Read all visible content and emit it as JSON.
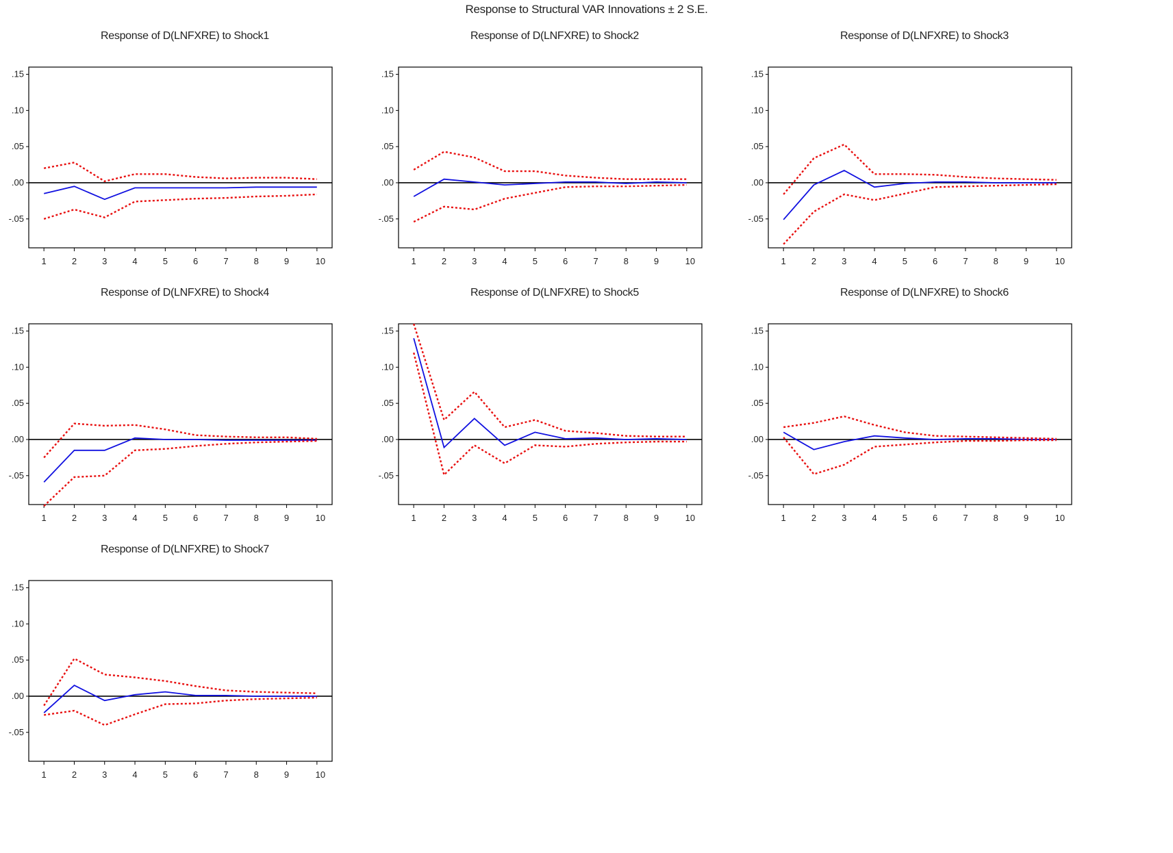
{
  "title": "Response to Structural VAR Innovations ± 2 S.E.",
  "colors": {
    "response": "#1010e0",
    "band": "#e81010",
    "axis": "#000000"
  },
  "chart_data": [
    {
      "type": "line",
      "title": "Response of D(LNFXRE) to Shock1",
      "x": [
        1,
        2,
        3,
        4,
        5,
        6,
        7,
        8,
        9,
        10
      ],
      "ylim": [
        -0.09,
        0.16
      ],
      "yticks": [
        0.15,
        0.1,
        0.05,
        0.0,
        -0.05
      ],
      "ytick_labels": [
        ".15",
        ".10",
        ".05",
        ".00",
        "-.05"
      ],
      "series": [
        {
          "role": "response",
          "values": [
            -0.015,
            -0.005,
            -0.023,
            -0.007,
            -0.007,
            -0.007,
            -0.007,
            -0.006,
            -0.006,
            -0.006
          ]
        },
        {
          "role": "upper",
          "values": [
            0.02,
            0.028,
            0.002,
            0.012,
            0.012,
            0.008,
            0.006,
            0.007,
            0.007,
            0.005
          ]
        },
        {
          "role": "lower",
          "values": [
            -0.05,
            -0.037,
            -0.048,
            -0.026,
            -0.024,
            -0.022,
            -0.021,
            -0.019,
            -0.018,
            -0.016
          ]
        }
      ]
    },
    {
      "type": "line",
      "title": "Response of D(LNFXRE) to Shock2",
      "x": [
        1,
        2,
        3,
        4,
        5,
        6,
        7,
        8,
        9,
        10
      ],
      "ylim": [
        -0.09,
        0.16
      ],
      "yticks": [
        0.15,
        0.1,
        0.05,
        0.0,
        -0.05
      ],
      "ytick_labels": [
        ".15",
        ".10",
        ".05",
        ".00",
        "-.05"
      ],
      "series": [
        {
          "role": "response",
          "values": [
            -0.019,
            0.005,
            0.001,
            -0.003,
            -0.001,
            0.001,
            0.001,
            -0.001,
            0.001,
            0.0
          ]
        },
        {
          "role": "upper",
          "values": [
            0.018,
            0.043,
            0.035,
            0.016,
            0.016,
            0.01,
            0.007,
            0.005,
            0.005,
            0.005
          ]
        },
        {
          "role": "lower",
          "values": [
            -0.054,
            -0.033,
            -0.037,
            -0.022,
            -0.014,
            -0.006,
            -0.005,
            -0.005,
            -0.004,
            -0.003
          ]
        }
      ]
    },
    {
      "type": "line",
      "title": "Response of D(LNFXRE) to Shock3",
      "x": [
        1,
        2,
        3,
        4,
        5,
        6,
        7,
        8,
        9,
        10
      ],
      "ylim": [
        -0.09,
        0.16
      ],
      "yticks": [
        0.15,
        0.1,
        0.05,
        0.0,
        -0.05
      ],
      "ytick_labels": [
        ".15",
        ".10",
        ".05",
        ".00",
        "-.05"
      ],
      "series": [
        {
          "role": "response",
          "values": [
            -0.051,
            -0.003,
            0.017,
            -0.006,
            -0.001,
            0.001,
            0.001,
            0.0,
            0.0,
            0.0
          ]
        },
        {
          "role": "upper",
          "values": [
            -0.016,
            0.034,
            0.053,
            0.012,
            0.012,
            0.011,
            0.008,
            0.006,
            0.005,
            0.004
          ]
        },
        {
          "role": "lower",
          "values": [
            -0.085,
            -0.04,
            -0.016,
            -0.024,
            -0.015,
            -0.006,
            -0.005,
            -0.004,
            -0.003,
            -0.002
          ]
        }
      ]
    },
    {
      "type": "line",
      "title": "Response of D(LNFXRE) to Shock4",
      "x": [
        1,
        2,
        3,
        4,
        5,
        6,
        7,
        8,
        9,
        10
      ],
      "ylim": [
        -0.09,
        0.16
      ],
      "yticks": [
        0.15,
        0.1,
        0.05,
        0.0,
        -0.05
      ],
      "ytick_labels": [
        ".15",
        ".10",
        ".05",
        ".00",
        "-.05"
      ],
      "series": [
        {
          "role": "response",
          "values": [
            -0.059,
            -0.015,
            -0.015,
            0.002,
            0.0,
            0.0,
            -0.001,
            -0.001,
            -0.001,
            -0.001
          ]
        },
        {
          "role": "upper",
          "values": [
            -0.025,
            0.022,
            0.019,
            0.02,
            0.014,
            0.006,
            0.004,
            0.003,
            0.003,
            0.001
          ]
        },
        {
          "role": "lower",
          "values": [
            -0.092,
            -0.052,
            -0.05,
            -0.015,
            -0.013,
            -0.009,
            -0.006,
            -0.004,
            -0.003,
            -0.002
          ]
        }
      ]
    },
    {
      "type": "line",
      "title": "Response of D(LNFXRE) to Shock5",
      "x": [
        1,
        2,
        3,
        4,
        5,
        6,
        7,
        8,
        9,
        10
      ],
      "ylim": [
        -0.09,
        0.16
      ],
      "yticks": [
        0.15,
        0.1,
        0.05,
        0.0,
        -0.05
      ],
      "ytick_labels": [
        ".15",
        ".10",
        ".05",
        ".00",
        "-.05"
      ],
      "series": [
        {
          "role": "response",
          "values": [
            0.14,
            -0.011,
            0.029,
            -0.008,
            0.01,
            0.001,
            0.002,
            0.0,
            0.001,
            0.0
          ]
        },
        {
          "role": "upper",
          "values": [
            0.16,
            0.027,
            0.066,
            0.017,
            0.027,
            0.012,
            0.009,
            0.005,
            0.004,
            0.004
          ]
        },
        {
          "role": "lower",
          "values": [
            0.12,
            -0.049,
            -0.008,
            -0.033,
            -0.008,
            -0.01,
            -0.006,
            -0.004,
            -0.003,
            -0.003
          ]
        }
      ]
    },
    {
      "type": "line",
      "title": "Response of D(LNFXRE) to Shock6",
      "x": [
        1,
        2,
        3,
        4,
        5,
        6,
        7,
        8,
        9,
        10
      ],
      "ylim": [
        -0.09,
        0.16
      ],
      "yticks": [
        0.15,
        0.1,
        0.05,
        0.0,
        -0.05
      ],
      "ytick_labels": [
        ".15",
        ".10",
        ".05",
        ".00",
        "-.05"
      ],
      "series": [
        {
          "role": "response",
          "values": [
            0.01,
            -0.014,
            -0.003,
            0.005,
            0.002,
            0.0,
            0.001,
            0.001,
            0.0,
            0.0
          ]
        },
        {
          "role": "upper",
          "values": [
            0.017,
            0.023,
            0.032,
            0.02,
            0.01,
            0.005,
            0.004,
            0.003,
            0.002,
            0.001
          ]
        },
        {
          "role": "lower",
          "values": [
            0.003,
            -0.048,
            -0.035,
            -0.01,
            -0.007,
            -0.004,
            -0.002,
            -0.002,
            -0.001,
            -0.001
          ]
        }
      ]
    },
    {
      "type": "line",
      "title": "Response of D(LNFXRE) to Shock7",
      "x": [
        1,
        2,
        3,
        4,
        5,
        6,
        7,
        8,
        9,
        10
      ],
      "ylim": [
        -0.09,
        0.16
      ],
      "yticks": [
        0.15,
        0.1,
        0.05,
        0.0,
        -0.05
      ],
      "ytick_labels": [
        ".15",
        ".10",
        ".05",
        ".00",
        "-.05"
      ],
      "series": [
        {
          "role": "response",
          "values": [
            -0.023,
            0.015,
            -0.006,
            0.002,
            0.006,
            0.001,
            0.001,
            0.0,
            0.0,
            0.0
          ]
        },
        {
          "role": "upper",
          "values": [
            -0.013,
            0.052,
            0.03,
            0.026,
            0.021,
            0.014,
            0.008,
            0.006,
            0.005,
            0.004
          ]
        },
        {
          "role": "lower",
          "values": [
            -0.026,
            -0.02,
            -0.04,
            -0.025,
            -0.011,
            -0.01,
            -0.006,
            -0.004,
            -0.003,
            -0.002
          ]
        }
      ]
    }
  ]
}
